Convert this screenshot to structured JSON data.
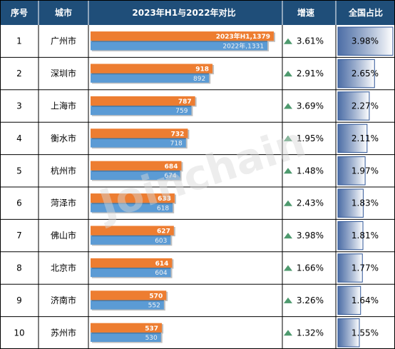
{
  "header": {
    "col_rank": "序号",
    "col_city": "城市",
    "col_compare": "2023年H1与2022年对比",
    "col_growth": "增速",
    "col_share": "全国占比"
  },
  "watermark": "Joinchain",
  "colors": {
    "header_bg": "#1f4e79",
    "bar_2023": "#ed7d31",
    "bar_2022": "#5b9bd5",
    "arrow_green": "#4e9a6e",
    "share_dark": "#2e5597",
    "share_light": "#ffffff",
    "grid": "#000000"
  },
  "chart_data": {
    "type": "table",
    "title": "2023年H1与2022年对比",
    "series": [
      {
        "name": "2023年H1",
        "values": [
          1379,
          918,
          787,
          732,
          684,
          633,
          627,
          614,
          570,
          537
        ]
      },
      {
        "name": "2022年",
        "values": [
          1331,
          892,
          759,
          718,
          674,
          618,
          603,
          604,
          552,
          530
        ]
      }
    ],
    "rows": [
      {
        "rank": "1",
        "city": "广州市",
        "v2023": 1379,
        "v2022": 1331,
        "label2023": "2023年H1,1379",
        "label2022": "2022年,1331",
        "growth": "3.61%",
        "share": "3.98%",
        "share_value": 3.98
      },
      {
        "rank": "2",
        "city": "深圳市",
        "v2023": 918,
        "v2022": 892,
        "label2023": "918",
        "label2022": "892",
        "growth": "2.91%",
        "share": "2.65%",
        "share_value": 2.65
      },
      {
        "rank": "3",
        "city": "上海市",
        "v2023": 787,
        "v2022": 759,
        "label2023": "787",
        "label2022": "759",
        "growth": "3.69%",
        "share": "2.27%",
        "share_value": 2.27
      },
      {
        "rank": "4",
        "city": "衡水市",
        "v2023": 732,
        "v2022": 718,
        "label2023": "732",
        "label2022": "718",
        "growth": "1.95%",
        "share": "2.11%",
        "share_value": 2.11
      },
      {
        "rank": "5",
        "city": "杭州市",
        "v2023": 684,
        "v2022": 674,
        "label2023": "684",
        "label2022": "674",
        "growth": "1.48%",
        "share": "1.97%",
        "share_value": 1.97
      },
      {
        "rank": "6",
        "city": "菏泽市",
        "v2023": 633,
        "v2022": 618,
        "label2023": "633",
        "label2022": "618",
        "growth": "2.43%",
        "share": "1.83%",
        "share_value": 1.83
      },
      {
        "rank": "7",
        "city": "佛山市",
        "v2023": 627,
        "v2022": 603,
        "label2023": "627",
        "label2022": "603",
        "growth": "3.98%",
        "share": "1.81%",
        "share_value": 1.81
      },
      {
        "rank": "8",
        "city": "北京市",
        "v2023": 614,
        "v2022": 604,
        "label2023": "614",
        "label2022": "604",
        "growth": "1.66%",
        "share": "1.77%",
        "share_value": 1.77
      },
      {
        "rank": "9",
        "city": "济南市",
        "v2023": 570,
        "v2022": 552,
        "label2023": "570",
        "label2022": "552",
        "growth": "3.26%",
        "share": "1.64%",
        "share_value": 1.64
      },
      {
        "rank": "10",
        "city": "苏州市",
        "v2023": 537,
        "v2022": 530,
        "label2023": "537",
        "label2022": "530",
        "growth": "1.32%",
        "share": "1.55%",
        "share_value": 1.55
      }
    ]
  }
}
